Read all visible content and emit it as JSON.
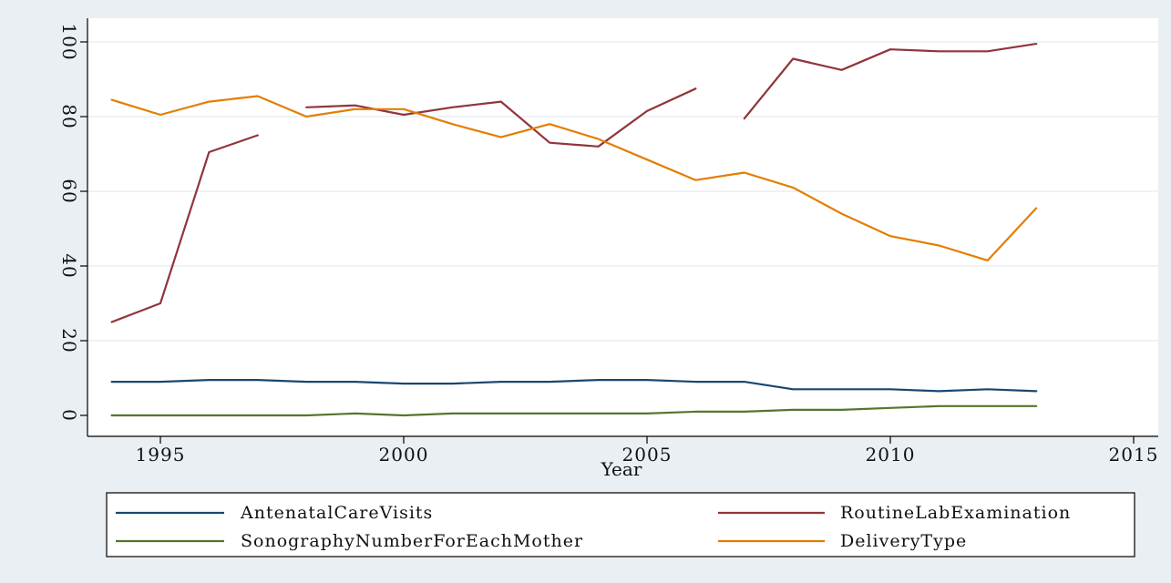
{
  "chart_data": {
    "type": "line",
    "xlabel": "Year",
    "ylabel": "",
    "xlim": [
      1994,
      2015
    ],
    "ylim": [
      0,
      100
    ],
    "xticks": [
      1995,
      2000,
      2005,
      2010,
      2015
    ],
    "yticks": [
      0,
      20,
      40,
      60,
      80,
      100
    ],
    "grid": "horizontal",
    "legend_position": "bottom",
    "colors": {
      "plot_background": "#ffffff",
      "outer_background": "#e9eff3",
      "grid": "#dde6ec"
    },
    "series": [
      {
        "name": "AntenatalCareVisits",
        "color": "#1a476f",
        "points": [
          [
            1994,
            9
          ],
          [
            1995,
            9
          ],
          [
            1996,
            9.5
          ],
          [
            1997,
            9.5
          ],
          [
            1998,
            9
          ],
          [
            1999,
            9
          ],
          [
            2000,
            8.5
          ],
          [
            2001,
            8.5
          ],
          [
            2002,
            9
          ],
          [
            2003,
            9
          ],
          [
            2004,
            9.5
          ],
          [
            2005,
            9.5
          ],
          [
            2006,
            9
          ],
          [
            2007,
            9
          ],
          [
            2008,
            7
          ],
          [
            2009,
            7
          ],
          [
            2010,
            7
          ],
          [
            2011,
            6.5
          ],
          [
            2012,
            7
          ],
          [
            2013,
            6.5
          ]
        ]
      },
      {
        "name": "RoutineLabExamination",
        "color": "#90353b",
        "points": [
          [
            1994,
            25
          ],
          [
            1995,
            30
          ],
          [
            1996,
            70.5
          ],
          [
            1997,
            75
          ],
          null,
          [
            1998,
            82.5
          ],
          [
            1999,
            83
          ],
          [
            2000,
            80.5
          ],
          [
            2001,
            82.5
          ],
          [
            2002,
            84
          ],
          [
            2003,
            73
          ],
          [
            2004,
            72
          ],
          [
            2005,
            81.5
          ],
          [
            2006,
            87.5
          ],
          null,
          [
            2007,
            79.5
          ],
          [
            2008,
            95.5
          ],
          [
            2009,
            92.5
          ],
          [
            2010,
            98
          ],
          [
            2011,
            97.5
          ],
          [
            2012,
            97.5
          ],
          [
            2013,
            99.5
          ]
        ]
      },
      {
        "name": "SonographyNumberForEachMother",
        "color": "#55752f",
        "points": [
          [
            1994,
            0
          ],
          [
            1995,
            0
          ],
          [
            1996,
            0
          ],
          [
            1997,
            0
          ],
          [
            1998,
            0
          ],
          [
            1999,
            0.5
          ],
          [
            2000,
            0
          ],
          [
            2001,
            0.5
          ],
          [
            2002,
            0.5
          ],
          [
            2003,
            0.5
          ],
          [
            2004,
            0.5
          ],
          [
            2005,
            0.5
          ],
          [
            2006,
            1
          ],
          [
            2007,
            1
          ],
          [
            2008,
            1.5
          ],
          [
            2009,
            1.5
          ],
          [
            2010,
            2
          ],
          [
            2011,
            2.5
          ],
          [
            2012,
            2.5
          ],
          [
            2013,
            2.5
          ]
        ]
      },
      {
        "name": "DeliveryType",
        "color": "#e37e00",
        "points": [
          [
            1994,
            84.5
          ],
          [
            1995,
            80.5
          ],
          [
            1996,
            84
          ],
          [
            1997,
            85.5
          ],
          [
            1998,
            80
          ],
          [
            1999,
            82
          ],
          [
            2000,
            82
          ],
          [
            2001,
            78
          ],
          [
            2002,
            74.5
          ],
          [
            2003,
            78
          ],
          [
            2004,
            74
          ],
          [
            2005,
            68.5
          ],
          [
            2006,
            63
          ],
          [
            2007,
            65
          ],
          [
            2008,
            61
          ],
          [
            2009,
            54
          ],
          [
            2010,
            48
          ],
          [
            2011,
            45.5
          ],
          [
            2012,
            41.5
          ],
          [
            2013,
            55.5
          ]
        ]
      }
    ]
  }
}
